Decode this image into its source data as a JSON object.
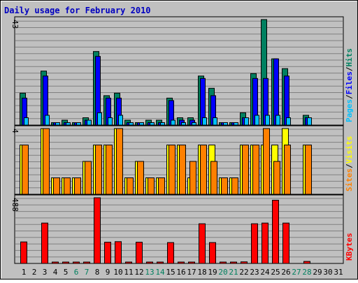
{
  "chart_data": {
    "type": "bar",
    "title": "Daily usage for February 2010",
    "days": [
      "1",
      "2",
      "3",
      "4",
      "5",
      "6",
      "7",
      "8",
      "9",
      "10",
      "11",
      "12",
      "13",
      "14",
      "15",
      "16",
      "17",
      "18",
      "19",
      "20",
      "21",
      "22",
      "23",
      "24",
      "25",
      "26",
      "27",
      "28",
      "29",
      "30",
      "31"
    ],
    "weekend_days": [
      "6",
      "7",
      "13",
      "14",
      "20",
      "21",
      "27",
      "28"
    ],
    "panels": [
      {
        "id": "hits_files_pages",
        "max_label": "43",
        "ymax": 43,
        "axis_labels": [
          {
            "text": "Pages",
            "color": "#00c0ff"
          },
          {
            "text": "/",
            "color": "#000000"
          },
          {
            "text": "Files",
            "color": "#0000ff"
          },
          {
            "text": "/",
            "color": "#000000"
          },
          {
            "text": "Hits",
            "color": "#008060"
          }
        ],
        "series": [
          {
            "name": "Hits",
            "color": "#008060",
            "values": [
              13,
              0,
              22,
              1,
              2,
              1,
              3,
              30,
              12,
              13,
              2,
              1,
              2,
              2,
              11,
              3,
              3,
              20,
              15,
              1,
              1,
              5,
              21,
              43,
              27,
              23,
              0,
              4,
              0,
              0,
              0
            ]
          },
          {
            "name": "Files",
            "color": "#0000ff",
            "values": [
              11,
              0,
              20,
              1,
              1,
              1,
              2,
              28,
              11,
              11,
              1,
              1,
              1,
              1,
              10,
              2,
              2,
              19,
              12,
              1,
              1,
              3,
              19,
              19,
              27,
              20,
              0,
              3,
              0,
              0,
              0
            ]
          },
          {
            "name": "Pages",
            "color": "#00c0ff",
            "values": [
              3,
              0,
              4,
              1,
              1,
              1,
              2,
              5,
              3,
              4,
              1,
              1,
              1,
              1,
              2,
              1,
              1,
              3,
              3,
              1,
              1,
              3,
              4,
              4,
              4,
              3,
              0,
              3,
              0,
              0,
              0
            ]
          }
        ]
      },
      {
        "id": "visits_sites",
        "max_label": "4",
        "ymax": 4,
        "axis_labels": [
          {
            "text": "Sites",
            "color": "#ff8000"
          },
          {
            "text": "/",
            "color": "#000000"
          },
          {
            "text": "Visits",
            "color": "#ffff00"
          }
        ],
        "series": [
          {
            "name": "Visits",
            "color": "#ffff00",
            "values": [
              3,
              0,
              4,
              1,
              1,
              1,
              2,
              3,
              3,
              4,
              1,
              2,
              1,
              1,
              3,
              3,
              1,
              3,
              3,
              1,
              1,
              3,
              3,
              3,
              3,
              4,
              0,
              3,
              0,
              0,
              0
            ]
          },
          {
            "name": "Sites",
            "color": "#ff8000",
            "values": [
              3,
              0,
              4,
              1,
              1,
              1,
              2,
              3,
              3,
              4,
              1,
              2,
              1,
              1,
              3,
              3,
              2,
              3,
              2,
              1,
              1,
              3,
              3,
              4,
              2,
              3,
              0,
              3,
              0,
              0,
              0
            ]
          }
        ]
      },
      {
        "id": "kbytes",
        "max_label": "488",
        "ymax": 488,
        "axis_labels": [
          {
            "text": "KBytes",
            "color": "#ff0000"
          }
        ],
        "series": [
          {
            "name": "KBytes",
            "color": "#ff0000",
            "values": [
              160,
              0,
              300,
              4,
              4,
              4,
              8,
              488,
              158,
              162,
              4,
              158,
              4,
              4,
              155,
              4,
              4,
              295,
              155,
              4,
              4,
              12,
              295,
              300,
              470,
              300,
              0,
              15,
              0,
              0,
              0
            ]
          }
        ]
      }
    ],
    "grid": true
  }
}
